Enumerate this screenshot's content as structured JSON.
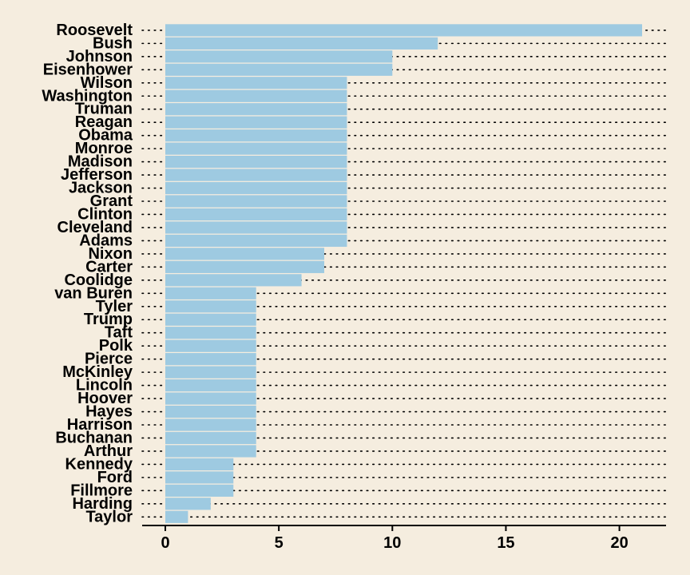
{
  "chart_data": {
    "type": "bar",
    "orientation": "horizontal",
    "categories": [
      "Roosevelt",
      "Bush",
      "Johnson",
      "Eisenhower",
      "Wilson",
      "Washington",
      "Truman",
      "Reagan",
      "Obama",
      "Monroe",
      "Madison",
      "Jefferson",
      "Jackson",
      "Grant",
      "Clinton",
      "Cleveland",
      "Adams",
      "Nixon",
      "Carter",
      "Coolidge",
      "van Buren",
      "Tyler",
      "Trump",
      "Taft",
      "Polk",
      "Pierce",
      "McKinley",
      "Lincoln",
      "Hoover",
      "Hayes",
      "Harrison",
      "Buchanan",
      "Arthur",
      "Kennedy",
      "Ford",
      "Fillmore",
      "Harding",
      "Taylor"
    ],
    "values": [
      21,
      12,
      10,
      10,
      8,
      8,
      8,
      8,
      8,
      8,
      8,
      8,
      8,
      8,
      8,
      8,
      8,
      7,
      7,
      6,
      4,
      4,
      4,
      4,
      4,
      4,
      4,
      4,
      4,
      4,
      4,
      4,
      4,
      3,
      3,
      3,
      2,
      1
    ],
    "title": "",
    "xlabel": "",
    "ylabel": "",
    "xlim": [
      0,
      22
    ],
    "xticks": [
      0,
      5,
      10,
      15,
      20
    ],
    "bar_color": "#9ecae1",
    "background_color": "#f5eddf",
    "grid": "dotted horizontal guide lines"
  }
}
